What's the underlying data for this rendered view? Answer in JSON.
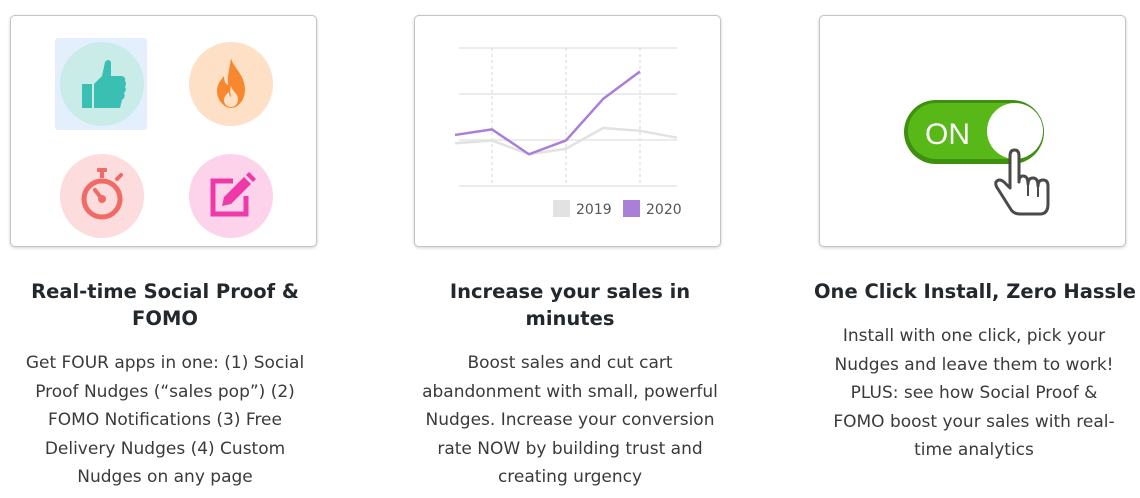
{
  "features": [
    {
      "title": "Real-time Social Proof & FOMO",
      "title_lines": [
        "Real-time Social Proof &",
        "FOMO"
      ],
      "desc_lines": [
        "Get FOUR apps in one: (1) Social",
        "Proof Nudges (“sales pop”) (2)",
        "FOMO Notifications (3) Free",
        "Delivery Nudges (4) Custom",
        "Nudges on any page"
      ],
      "icons": [
        "thumbs-up-icon",
        "fire-icon",
        "stopwatch-icon",
        "edit-icon"
      ]
    },
    {
      "title": "Increase your sales in minutes",
      "title_lines": [
        "Increase your sales in",
        "minutes"
      ],
      "desc_lines": [
        "Boost sales and cut cart",
        "abandonment with small, powerful",
        "Nudges. Increase your conversion",
        "rate NOW by building trust and",
        "creating urgency"
      ]
    },
    {
      "title": "One Click Install, Zero Hassle",
      "title_lines": [
        "One Click Install, Zero Hassle"
      ],
      "desc_lines": [
        "Install with one click, pick your",
        "Nudges and leave them to work!",
        "PLUS: see how Social Proof &",
        "FOMO boost your sales with real-",
        "time analytics"
      ],
      "toggle_label": "ON",
      "icons": [
        "toggle-switch-icon",
        "hand-pointer-icon"
      ]
    }
  ],
  "chart_data": {
    "type": "line",
    "x": [
      1,
      2,
      3,
      4,
      5,
      6,
      7
    ],
    "series": [
      {
        "name": "2019",
        "values": [
          31,
          33,
          23,
          27,
          42,
          40,
          35
        ],
        "color": "#e2e2e2"
      },
      {
        "name": "2020",
        "values": [
          37,
          41,
          23,
          33,
          63,
          83,
          null
        ],
        "color": "#a97fd8"
      }
    ],
    "ylim": [
      0,
      100
    ],
    "grid": true,
    "legend_position": "bottom-right"
  },
  "colors": {
    "teal": "#3bbfb2",
    "teal_bg": "#c9ece8",
    "orange": "#f7882f",
    "orange_bg": "#fde0c6",
    "red": "#f06a66",
    "red_bg": "#fcdcdc",
    "pink": "#ee3aa8",
    "pink_bg": "#fdd3ec",
    "green": "#58b818",
    "green_dark": "#3f8f10"
  }
}
